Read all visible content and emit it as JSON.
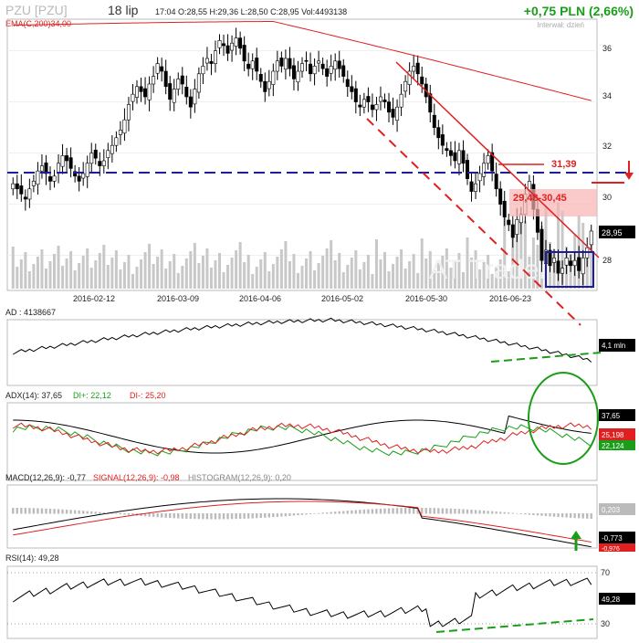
{
  "header": {
    "ticker": "PZU [PZU]",
    "date": "18 lip",
    "quote": "17:04  O:28,55  H:29,36  L:28,50  C:28,95  Vol:4493138",
    "change": "+0,75 PLN (2,66%)",
    "interval": "Interwał: dzień",
    "ema_label": "EMA(C,200)34,00"
  },
  "colors": {
    "up": "#ffffff",
    "down": "#000000",
    "ema": "#e02020",
    "resistance": "#1c1c9c",
    "green_annot": "#1a9e1a",
    "red_annot": "#e02020",
    "volume": "#c8c8c8"
  },
  "annotations": {
    "level_3139": "31,39",
    "zone": "29,48-30,45",
    "last_price": "28,95",
    "watermark": "AT Trader"
  },
  "panels": {
    "ad": {
      "label": "AD : 4138667",
      "value_box": "4,1 mln"
    },
    "adx": {
      "label_adx": "ADX(14): 37,65",
      "label_dip": "DI+: 22,12",
      "label_dim": "DI-: 25,20",
      "box_adx": "37,65",
      "box_dim": "25,198",
      "box_dip": "22,124"
    },
    "macd": {
      "label_macd": "MACD(12,26,9): -0,77",
      "label_signal": "SIGNAL(12,26,9): -0,98",
      "label_hist": "HISTOGRAM(12,26,9): 0,20",
      "box_hist": "0,203",
      "box_macd": "-0,773",
      "box_signal": "-0,976"
    },
    "rsi": {
      "label": "RSI(14): 49,28",
      "box_value": "49,28",
      "levels": [
        "70",
        "30"
      ]
    }
  },
  "chart_data": {
    "type": "candlestick",
    "title": "PZU [PZU]",
    "x_ticks": [
      "2016-02-12",
      "2016-03-09",
      "2016-04-06",
      "2016-05-02",
      "2016-05-30",
      "2016-06-23"
    ],
    "y_ticks": [
      "36",
      "34",
      "32",
      "30",
      "28"
    ],
    "ylim": [
      26.7,
      37.2
    ],
    "horizontal_level": 31.0,
    "closes": [
      30.8,
      30.6,
      30.4,
      30.2,
      30.6,
      30.9,
      31.3,
      31.5,
      31.2,
      30.9,
      31.1,
      31.6,
      31.9,
      31.7,
      31.4,
      31.1,
      30.9,
      31.2,
      31.6,
      32.0,
      31.8,
      31.5,
      31.7,
      32.1,
      32.3,
      32.6,
      32.9,
      33.3,
      33.9,
      34.3,
      34.6,
      34.4,
      34.2,
      34.7,
      35.0,
      35.5,
      35.2,
      34.6,
      34.1,
      34.5,
      34.9,
      34.7,
      34.2,
      33.8,
      34.5,
      35.1,
      35.4,
      35.7,
      35.5,
      36.0,
      36.4,
      36.2,
      35.9,
      36.3,
      36.5,
      36.1,
      35.6,
      35.3,
      35.6,
      35.2,
      34.8,
      34.4,
      34.8,
      35.2,
      35.6,
      35.4,
      35.7,
      35.3,
      34.9,
      35.2,
      35.5,
      35.6,
      35.1,
      35.4,
      35.6,
      35.3,
      35.0,
      35.4,
      35.6,
      35.3,
      35.0,
      34.6,
      34.4,
      34.0,
      33.8,
      34.1,
      34.0,
      33.7,
      33.9,
      34.2,
      34.0,
      33.6,
      33.4,
      33.8,
      34.3,
      34.8,
      35.2,
      35.4,
      35.1,
      34.7,
      34.2,
      33.6,
      33.0,
      32.6,
      32.3,
      32.1,
      31.9,
      31.7,
      32.1,
      31.6,
      31.0,
      30.5,
      30.8,
      31.2,
      31.6,
      31.9,
      31.3,
      30.6,
      30.0,
      29.5,
      29.2,
      28.7,
      29.4,
      29.6,
      30.4,
      30.9,
      29.8,
      28.9,
      27.8,
      28.2,
      27.6,
      27.9,
      27.3,
      27.5,
      27.9,
      27.6,
      27.8,
      27.4,
      27.9,
      28.3,
      28.95
    ]
  }
}
